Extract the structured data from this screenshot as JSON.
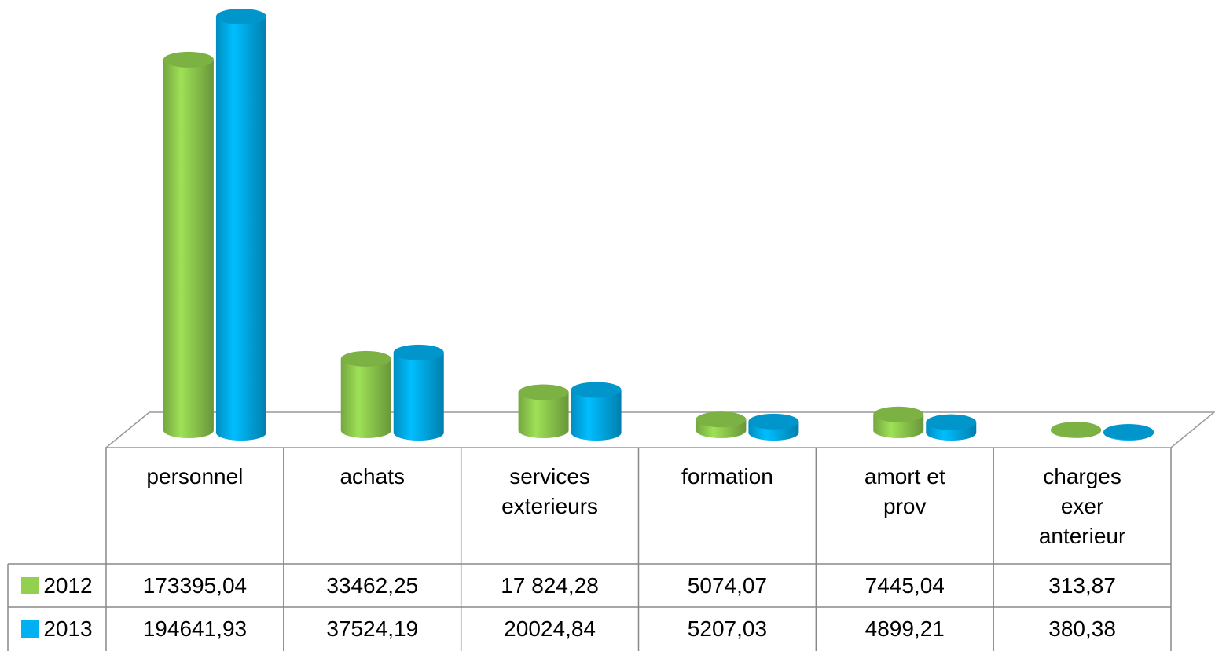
{
  "chart_data": {
    "type": "bar",
    "categories": [
      "personnel",
      "achats",
      "services\nexterieurs",
      "formation",
      "amort et\nprov",
      "charges\nexer\nanterieur"
    ],
    "series": [
      {
        "name": "2012",
        "color": "#92d050",
        "values": [
          173395.04,
          33462.25,
          17824.28,
          5074.07,
          7445.04,
          313.87
        ],
        "value_labels": [
          "173395,04",
          "33462,25",
          "17 824,28",
          "5074,07",
          "7445,04",
          "313,87"
        ]
      },
      {
        "name": "2013",
        "color": "#00b0f0",
        "values": [
          194641.93,
          37524.19,
          20024.84,
          5207.03,
          4899.21,
          380.38
        ],
        "value_labels": [
          "194641,93",
          "37524,19",
          "20024,84",
          "5207,03",
          "4899,21",
          "380,38"
        ]
      }
    ]
  }
}
